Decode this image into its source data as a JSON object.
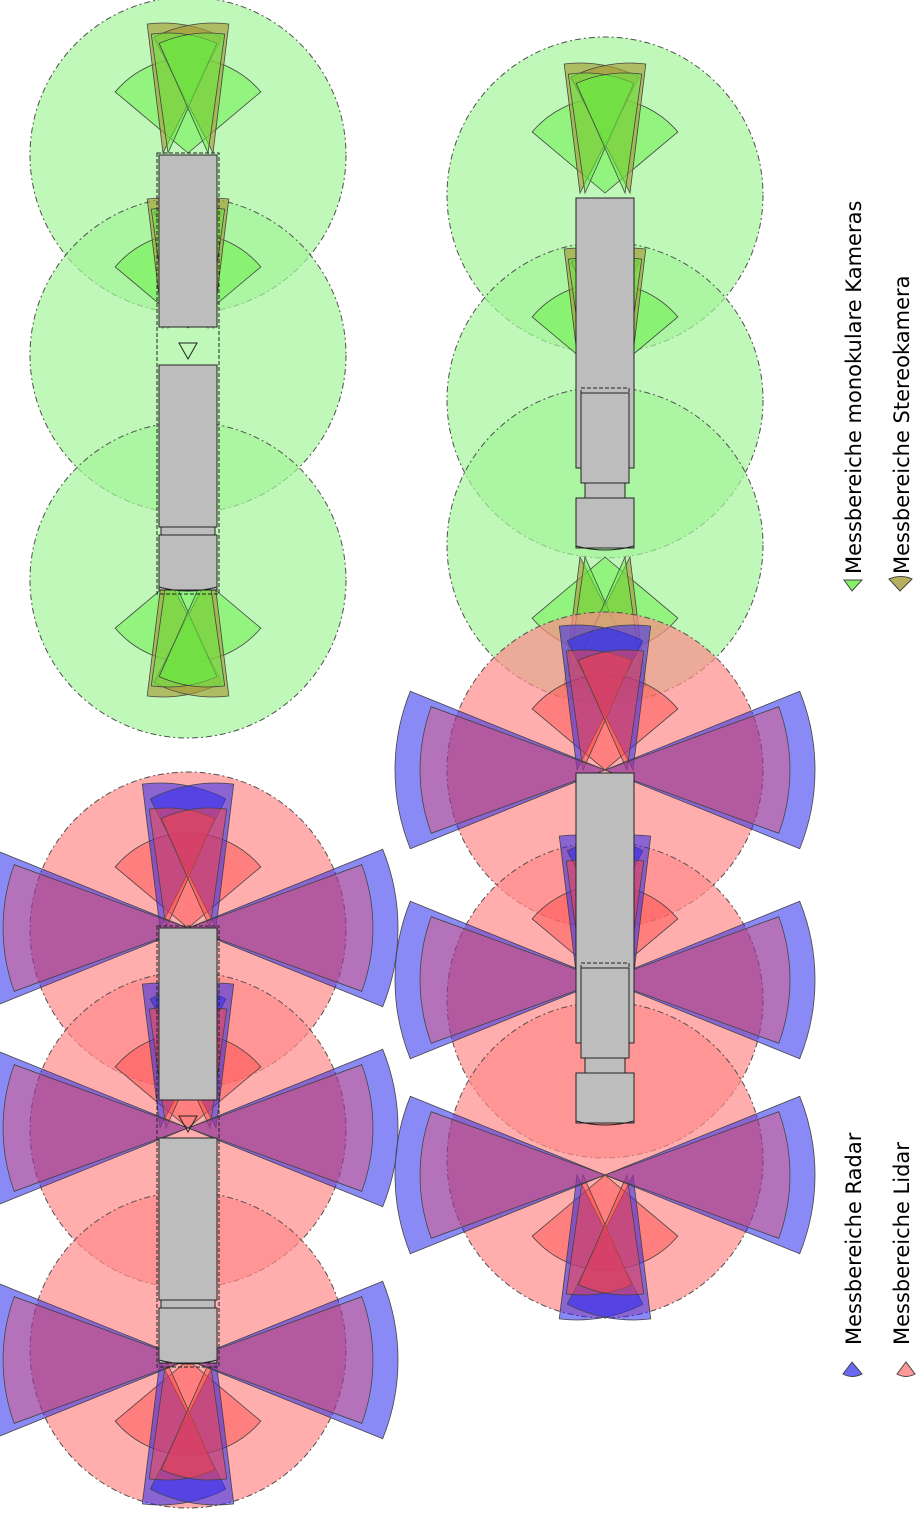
{
  "legend": {
    "monocular_label": "Messbereiche monokulare Kameras",
    "stereo_label": "Messbereiche Stereokamera",
    "radar_label": "Messbereiche Radar",
    "lidar_label": "Messbereiche Lidar"
  },
  "colors": {
    "monocular_fill": "#66ee44",
    "monocular_zone": "#a4f59a",
    "stereo_fill": "#a49b38",
    "radar_fill": "#2a2af0",
    "lidar_fill": "#ff4444",
    "lidar_zone": "#ff8a8a",
    "vehicle_fill": "#bdbdbd"
  }
}
